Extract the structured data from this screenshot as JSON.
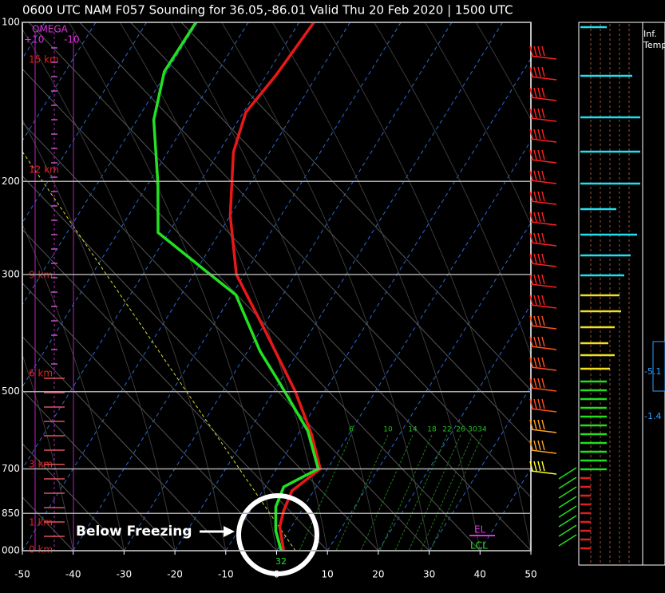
{
  "chart_data": {
    "type": "skewt",
    "title": "0600 UTC NAM F057 Sounding for 36.05,-86.01 Valid  Thu 20 Feb 2020 | 1500 UTC",
    "xlim": [
      -50,
      50
    ],
    "xticks": [
      -50,
      -40,
      -30,
      -20,
      -10,
      0,
      10,
      20,
      30,
      40,
      50
    ],
    "ylim": [
      100,
      1000
    ],
    "log_y": true,
    "yticks": [
      100,
      200,
      300,
      500,
      700,
      850,
      {
        "value": 1000,
        "label": "000"
      }
    ],
    "grid": true,
    "series": [
      {
        "color": "#e81818",
        "x": [
          1.4,
          -2.3,
          -3.5,
          -4.3,
          -1.4,
          -7.2,
          -15.7,
          -29.8,
          -41.6,
          -50,
          -57.1,
          -59.5,
          -58.1,
          -57.1
        ],
        "values": [
          1000,
          901,
          840,
          770,
          700,
          604,
          500,
          378,
          300,
          232,
          176,
          148,
          126,
          100
        ]
      },
      {
        "color": "#22e022",
        "x": [
          0.9,
          -2.6,
          -5.5,
          -6.4,
          -1.8,
          -8.5,
          -19.8,
          -27.6,
          -39.2,
          -47.9,
          -62.1,
          -68.1,
          -76.7,
          -80.5,
          -80.3
        ],
        "values": [
          1000,
          917,
          826,
          757,
          700,
          593,
          482,
          419,
          328,
          296,
          250,
          202,
          153,
          124,
          100
        ]
      }
    ],
    "height_labels": [
      "15 km",
      "12 km",
      "9 km",
      "6 km",
      "3 km",
      "1 km",
      "0 km"
    ],
    "mixing_ratio_labels": [
      6,
      10,
      14,
      18,
      22,
      26,
      30,
      34
    ],
    "omega": {
      "title": "OMEGA",
      "left": "+10",
      "right": "-10"
    },
    "annotation": "Below Freezing",
    "surface_label": "32",
    "el_label": "EL",
    "lcl_label": "LCL",
    "side_panel": {
      "header": [
        "Inf.",
        "Temp"
      ],
      "values": [
        "-5.1",
        "-1.4"
      ]
    }
  }
}
